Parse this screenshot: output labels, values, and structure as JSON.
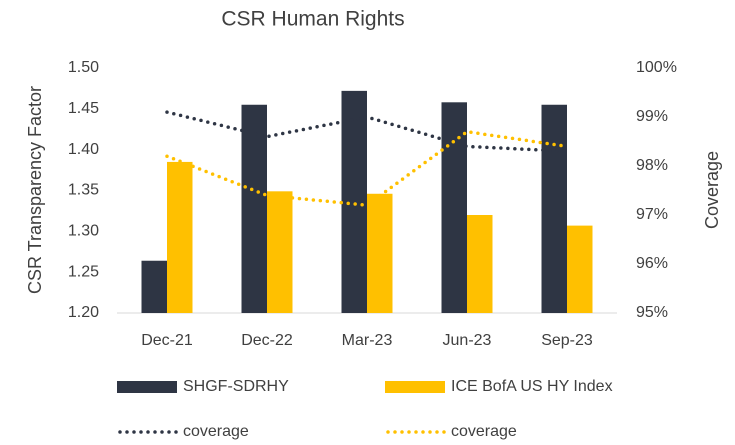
{
  "chart_data": {
    "type": "bar",
    "title": "CSR Human Rights",
    "y_label": "CSR Transparency Factor",
    "y2_label": "Coverage",
    "categories": [
      "Dec-21",
      "Dec-22",
      "Mar-23",
      "Jun-23",
      "Sep-23"
    ],
    "ylim": [
      1.2,
      1.5
    ],
    "yticks": [
      {
        "value": 1.2,
        "label": "1.20"
      },
      {
        "value": 1.25,
        "label": "1.25"
      },
      {
        "value": 1.3,
        "label": "1.30"
      },
      {
        "value": 1.35,
        "label": "1.35"
      },
      {
        "value": 1.4,
        "label": "1.40"
      },
      {
        "value": 1.45,
        "label": "1.45"
      },
      {
        "value": 1.5,
        "label": "1.50"
      }
    ],
    "y2lim": [
      95,
      100
    ],
    "y2ticks": [
      {
        "value": 95,
        "label": "95%"
      },
      {
        "value": 96,
        "label": "96%"
      },
      {
        "value": 97,
        "label": "97%"
      },
      {
        "value": 98,
        "label": "98%"
      },
      {
        "value": 99,
        "label": "99%"
      },
      {
        "value": 100,
        "label": "100%"
      }
    ],
    "grid": false,
    "series": [
      {
        "name": "SHGF-SDRHY",
        "color": "#2e3544",
        "type": "bar",
        "values": [
          1.264,
          1.455,
          1.472,
          1.458,
          1.455
        ]
      },
      {
        "name": "ICE BofA US HY Index",
        "color": "#ffc000",
        "type": "bar",
        "values": [
          1.385,
          1.349,
          1.346,
          1.32,
          1.307
        ]
      },
      {
        "name": "coverage",
        "color": "#2e3544",
        "type": "line",
        "axis": "y2",
        "values": [
          99.1,
          98.6,
          99.0,
          98.4,
          98.3
        ]
      },
      {
        "name": "coverage",
        "color": "#ffc000",
        "type": "line",
        "axis": "y2",
        "values": [
          98.2,
          97.4,
          97.2,
          98.7,
          98.4
        ]
      }
    ]
  }
}
